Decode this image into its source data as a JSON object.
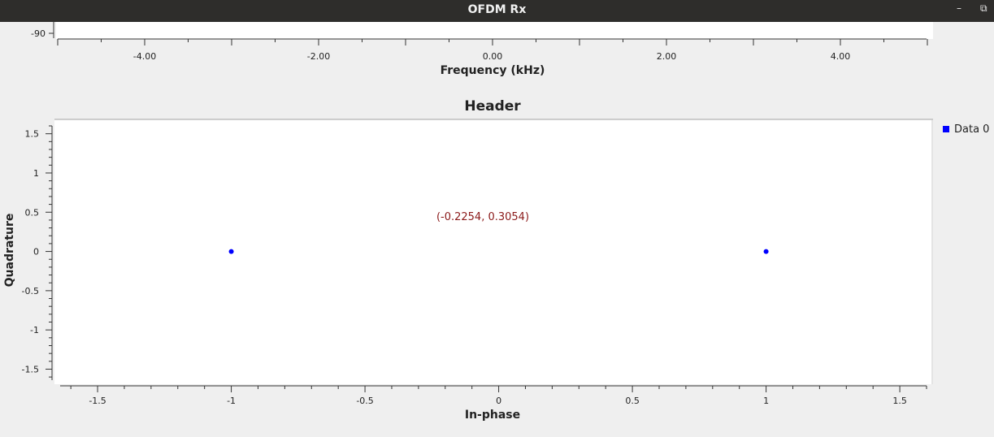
{
  "window": {
    "title": "OFDM Rx",
    "minimize_glyph": "–",
    "restore_glyph": "⧉"
  },
  "freq_plot": {
    "y_tick_partial": "-90",
    "x_ticks": [
      "-4.00",
      "-2.00",
      "0.00",
      "2.00",
      "4.00"
    ],
    "x_tick_values": [
      -4,
      -2,
      0,
      2,
      4
    ],
    "xlim": [
      -5,
      5
    ],
    "xlabel": "Frequency (kHz)"
  },
  "chart_data": {
    "type": "scatter",
    "title": "Header",
    "xlabel": "In-phase",
    "ylabel": "Quadrature",
    "xlim": [
      -1.64,
      1.6
    ],
    "ylim": [
      -1.64,
      1.6
    ],
    "x_ticks": [
      "-1.5",
      "-1",
      "-0.5",
      "0",
      "0.5",
      "1",
      "1.5"
    ],
    "x_tick_values": [
      -1.5,
      -1,
      -0.5,
      0,
      0.5,
      1,
      1.5
    ],
    "y_ticks": [
      "1.5",
      "1",
      "0.5",
      "0",
      "-0.5",
      "-1",
      "-1.5"
    ],
    "y_tick_values": [
      1.5,
      1,
      0.5,
      0,
      -0.5,
      -1,
      -1.5
    ],
    "series": [
      {
        "name": "Data 0",
        "color": "#0000ff",
        "points": [
          [
            -1,
            0
          ],
          [
            1,
            0
          ]
        ]
      }
    ],
    "legend_position": "right",
    "cursor_readout": "(-0.2254, 0.3054)",
    "readout_color": "#8b1a1a",
    "grid": false
  }
}
